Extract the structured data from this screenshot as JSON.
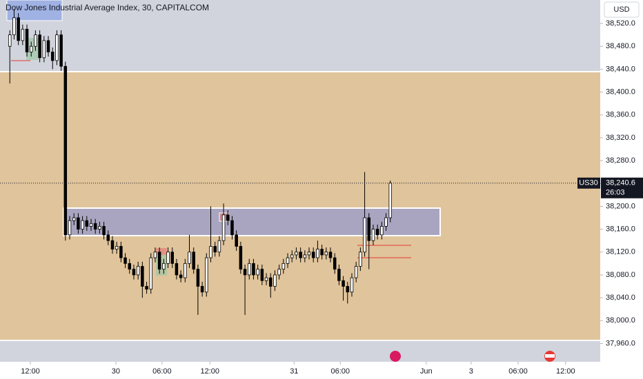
{
  "chart_data": {
    "type": "candlestick",
    "title": "Dow Jones Industrial Average Index, 30, CAPITALCOM",
    "currency": "USD",
    "symbol": "US30",
    "countdown": "26:03",
    "last_price": {
      "value": 38240.6,
      "label": "38,240.6"
    },
    "up_color": "#ffffff",
    "down_color": "#000000",
    "wick_color": "#000000",
    "open": [
      38480,
      38500,
      38530,
      38490,
      38510,
      38470,
      38480,
      38500,
      38460,
      38490,
      38470,
      38455,
      38500,
      38445,
      38150,
      38175,
      38180,
      38160,
      38175,
      38165,
      38170,
      38160,
      38165,
      38150,
      38140,
      38125,
      38130,
      38110,
      38100,
      38090,
      38080,
      38095,
      38060,
      38055,
      38110,
      38120,
      38090,
      38100,
      38120,
      38100,
      38080,
      38075,
      38100,
      38120,
      38090,
      38060,
      38050,
      38110,
      38130,
      38120,
      38140,
      38185,
      38175,
      38150,
      38130,
      38090,
      38080,
      38100,
      38080,
      38090,
      38070,
      38075,
      38060,
      38080,
      38090,
      38100,
      38110,
      38115,
      38120,
      38110,
      38115,
      38120,
      38110,
      38125,
      38115,
      38120,
      38110,
      38090,
      38070,
      38060,
      38050,
      38075,
      38095,
      38120,
      38180,
      38140,
      38160,
      38150,
      38165,
      38180
    ],
    "high": [
      38508,
      38545,
      38538,
      38518,
      38518,
      38488,
      38508,
      38508,
      38498,
      38498,
      38478,
      38508,
      38508,
      38453,
      38183,
      38188,
      38188,
      38183,
      38183,
      38178,
      38178,
      38173,
      38173,
      38158,
      38148,
      38138,
      38138,
      38118,
      38108,
      38098,
      38103,
      38103,
      38068,
      38118,
      38128,
      38128,
      38108,
      38128,
      38128,
      38108,
      38088,
      38108,
      38150,
      38128,
      38098,
      38068,
      38118,
      38200,
      38138,
      38148,
      38205,
      38193,
      38183,
      38158,
      38138,
      38098,
      38108,
      38108,
      38098,
      38098,
      38083,
      38083,
      38088,
      38098,
      38108,
      38118,
      38123,
      38128,
      38128,
      38123,
      38128,
      38128,
      38140,
      38133,
      38128,
      38128,
      38118,
      38098,
      38078,
      38068,
      38083,
      38103,
      38128,
      38260,
      38188,
      38168,
      38168,
      38173,
      38188,
      38245
    ],
    "low": [
      38415,
      38492,
      38482,
      38482,
      38462,
      38462,
      38472,
      38452,
      38452,
      38462,
      38440,
      38447,
      38437,
      38140,
      38142,
      38167,
      38152,
      38152,
      38157,
      38157,
      38152,
      38152,
      38142,
      38132,
      38117,
      38117,
      38102,
      38092,
      38082,
      38072,
      38072,
      38040,
      38047,
      38047,
      38102,
      38082,
      38082,
      38092,
      38092,
      38072,
      38067,
      38067,
      38092,
      38082,
      38010,
      38042,
      38042,
      38102,
      38112,
      38112,
      38132,
      38167,
      38142,
      38122,
      38082,
      38010,
      38072,
      38072,
      38072,
      38062,
      38062,
      38040,
      38052,
      38072,
      38082,
      38092,
      38102,
      38107,
      38102,
      38102,
      38107,
      38102,
      38102,
      38107,
      38107,
      38102,
      38082,
      38062,
      38035,
      38030,
      38042,
      38067,
      38087,
      38112,
      38090,
      38132,
      38142,
      38142,
      38157,
      38172
    ],
    "close": [
      38500,
      38530,
      38490,
      38510,
      38470,
      38480,
      38500,
      38460,
      38490,
      38470,
      38455,
      38500,
      38445,
      38150,
      38175,
      38180,
      38160,
      38175,
      38165,
      38170,
      38160,
      38165,
      38150,
      38140,
      38125,
      38130,
      38110,
      38100,
      38090,
      38080,
      38095,
      38060,
      38055,
      38110,
      38120,
      38090,
      38100,
      38120,
      38100,
      38080,
      38075,
      38100,
      38120,
      38090,
      38060,
      38050,
      38110,
      38130,
      38120,
      38140,
      38185,
      38175,
      38150,
      38130,
      38090,
      38080,
      38100,
      38080,
      38090,
      38070,
      38075,
      38060,
      38080,
      38090,
      38100,
      38110,
      38115,
      38120,
      38110,
      38115,
      38120,
      38110,
      38125,
      38115,
      38120,
      38110,
      38090,
      38070,
      38060,
      38050,
      38075,
      38095,
      38120,
      38180,
      38140,
      38160,
      38150,
      38165,
      38180,
      38240.6
    ],
    "xlim": [
      -2.3,
      138.1
    ],
    "xticks": [
      {
        "value": 4.8,
        "label": "12:00"
      },
      {
        "value": 24.8,
        "label": "30"
      },
      {
        "value": 35.6,
        "label": "06:00"
      },
      {
        "value": 46.8,
        "label": "12:00"
      },
      {
        "value": 66.5,
        "label": "31"
      },
      {
        "value": 77.3,
        "label": "06:00"
      },
      {
        "value": 97.4,
        "label": "Jun"
      },
      {
        "value": 107.9,
        "label": "3"
      },
      {
        "value": 118.9,
        "label": "06:00"
      },
      {
        "value": 130,
        "label": "12:00"
      }
    ],
    "ylim": [
      37928,
      38561
    ],
    "yticks": [
      {
        "value": 37960,
        "label": "37,960.0"
      },
      {
        "value": 38000,
        "label": "38,000.0"
      },
      {
        "value": 38040,
        "label": "38,040.0"
      },
      {
        "value": 38080,
        "label": "38,080.0"
      },
      {
        "value": 38120,
        "label": "38,120.0"
      },
      {
        "value": 38160,
        "label": "38,160.0"
      },
      {
        "value": 38200,
        "label": "38,200.0"
      },
      {
        "value": 38240,
        "label": "38,240.0"
      },
      {
        "value": 38280,
        "label": "38,280.0"
      },
      {
        "value": 38320,
        "label": "38,320.0"
      },
      {
        "value": 38360,
        "label": "38,360.0"
      },
      {
        "value": 38400,
        "label": "38,400.0"
      },
      {
        "value": 38440,
        "label": "38,440.0"
      },
      {
        "value": 38480,
        "label": "38,480.0"
      },
      {
        "value": 38520,
        "label": "38,520.0"
      }
    ]
  }
}
